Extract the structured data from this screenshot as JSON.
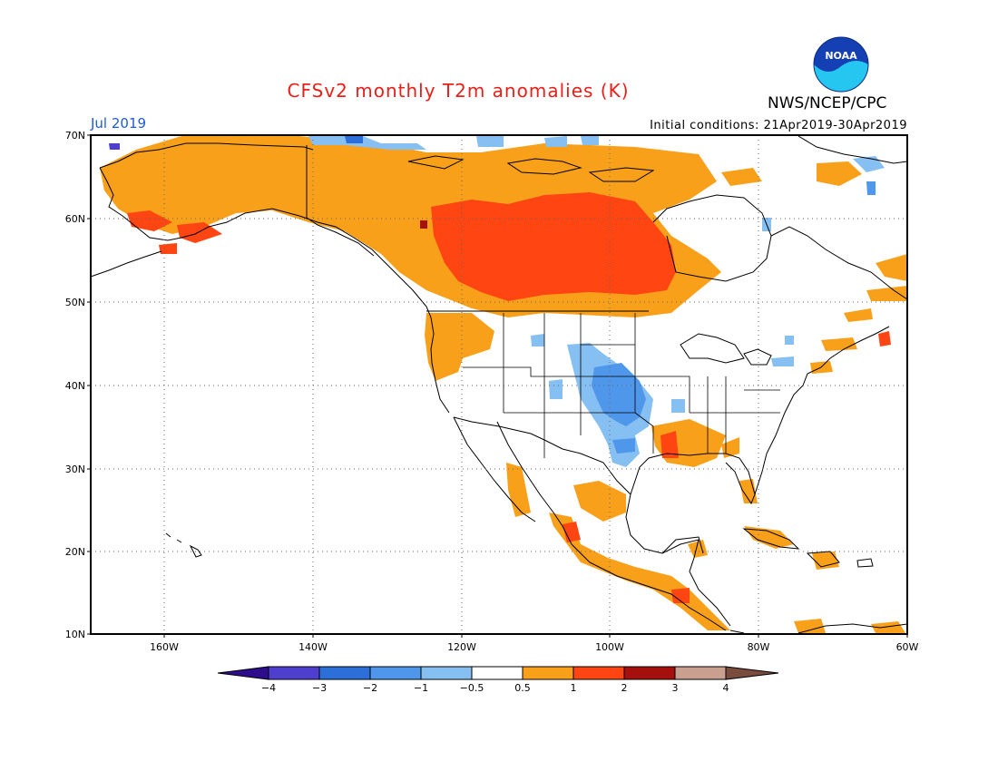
{
  "title": "CFSv2 monthly T2m anomalies (K)",
  "month": "Jul 2019",
  "agency": "NWS/NCEP/CPC",
  "logo_text": "NOAA",
  "initial_conditions": "Initial conditions: 21Apr2019-30Apr2019",
  "colors": {
    "title": "#e8201a",
    "month": "#1e5adc",
    "cold4": "#2d0d8c",
    "cold3": "#4f3fcf",
    "cold2": "#2c6fd9",
    "cold1": "#4f97ea",
    "cold05": "#86bff2",
    "neutral": "#ffffff",
    "warm05": "#f9a01b",
    "warm1": "#ff4512",
    "warm2": "#a50f0c",
    "warm3": "#c9a090",
    "warm4": "#7a4c3e"
  },
  "lat_labels": [
    "70N",
    "60N",
    "50N",
    "40N",
    "30N",
    "20N",
    "10N"
  ],
  "lon_labels": [
    "160W",
    "140W",
    "120W",
    "100W",
    "80W",
    "60W"
  ],
  "colorbar_labels": [
    "−4",
    "−3",
    "−2",
    "−1",
    "−0.5",
    "0.5",
    "1",
    "2",
    "3",
    "4"
  ]
}
